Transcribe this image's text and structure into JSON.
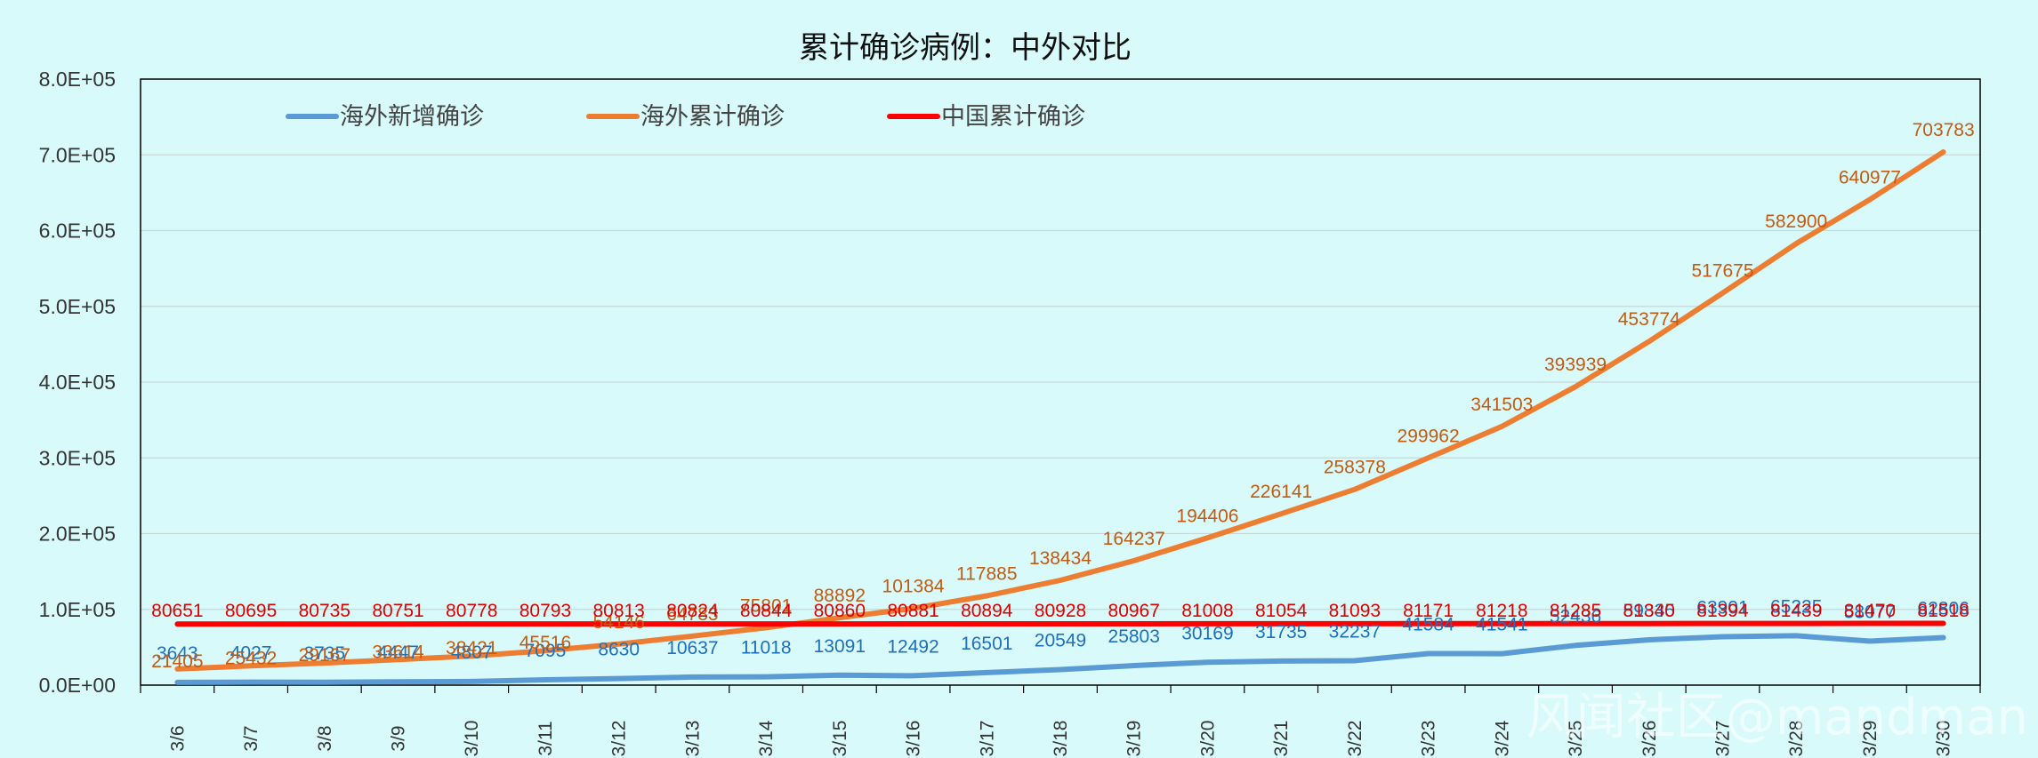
{
  "chart_data": {
    "type": "line",
    "title": "累计确诊病例：中外对比",
    "categories": [
      "3/6",
      "3/7",
      "3/8",
      "3/9",
      "3/10",
      "3/11",
      "3/12",
      "3/13",
      "3/14",
      "3/15",
      "3/16",
      "3/17",
      "3/18",
      "3/19",
      "3/20",
      "3/21",
      "3/22",
      "3/23",
      "3/24",
      "3/25",
      "3/26",
      "3/27",
      "3/28",
      "3/29",
      "3/30"
    ],
    "ylim": [
      0,
      800000
    ],
    "yticks": [
      "0.0E+00",
      "1.0E+05",
      "2.0E+05",
      "3.0E+05",
      "4.0E+05",
      "5.0E+05",
      "6.0E+05",
      "7.0E+05",
      "8.0E+05"
    ],
    "grid": true,
    "legend_position": "top-left",
    "series": [
      {
        "name": "海外新增确诊",
        "color": "#5b9bd5",
        "label_color": "#1f6fbf",
        "values": [
          3643,
          4027,
          3735,
          4447,
          4807,
          7095,
          8630,
          10637,
          11018,
          13091,
          12492,
          16501,
          20549,
          25803,
          30169,
          31735,
          32237,
          41584,
          41541,
          52436,
          59835,
          63901,
          65225,
          58077,
          62806
        ]
      },
      {
        "name": "海外累计确诊",
        "color": "#ed7d31",
        "label_color": "#c55a11",
        "values": [
          21405,
          25432,
          29167,
          33614,
          38421,
          45516,
          54146,
          64783,
          75801,
          88892,
          101384,
          117885,
          138434,
          164237,
          194406,
          226141,
          258378,
          299962,
          341503,
          393939,
          453774,
          517675,
          582900,
          640977,
          703783
        ]
      },
      {
        "name": "中国累计确诊",
        "color": "#ff0000",
        "label_color": "#e00000",
        "values": [
          80651,
          80695,
          80735,
          80751,
          80778,
          80793,
          80813,
          80824,
          80844,
          80860,
          80881,
          80894,
          80928,
          80967,
          81008,
          81054,
          81093,
          81171,
          81218,
          81285,
          81340,
          81394,
          81439,
          81470,
          81518
        ]
      }
    ]
  },
  "watermark": "风闻社区@mandman"
}
